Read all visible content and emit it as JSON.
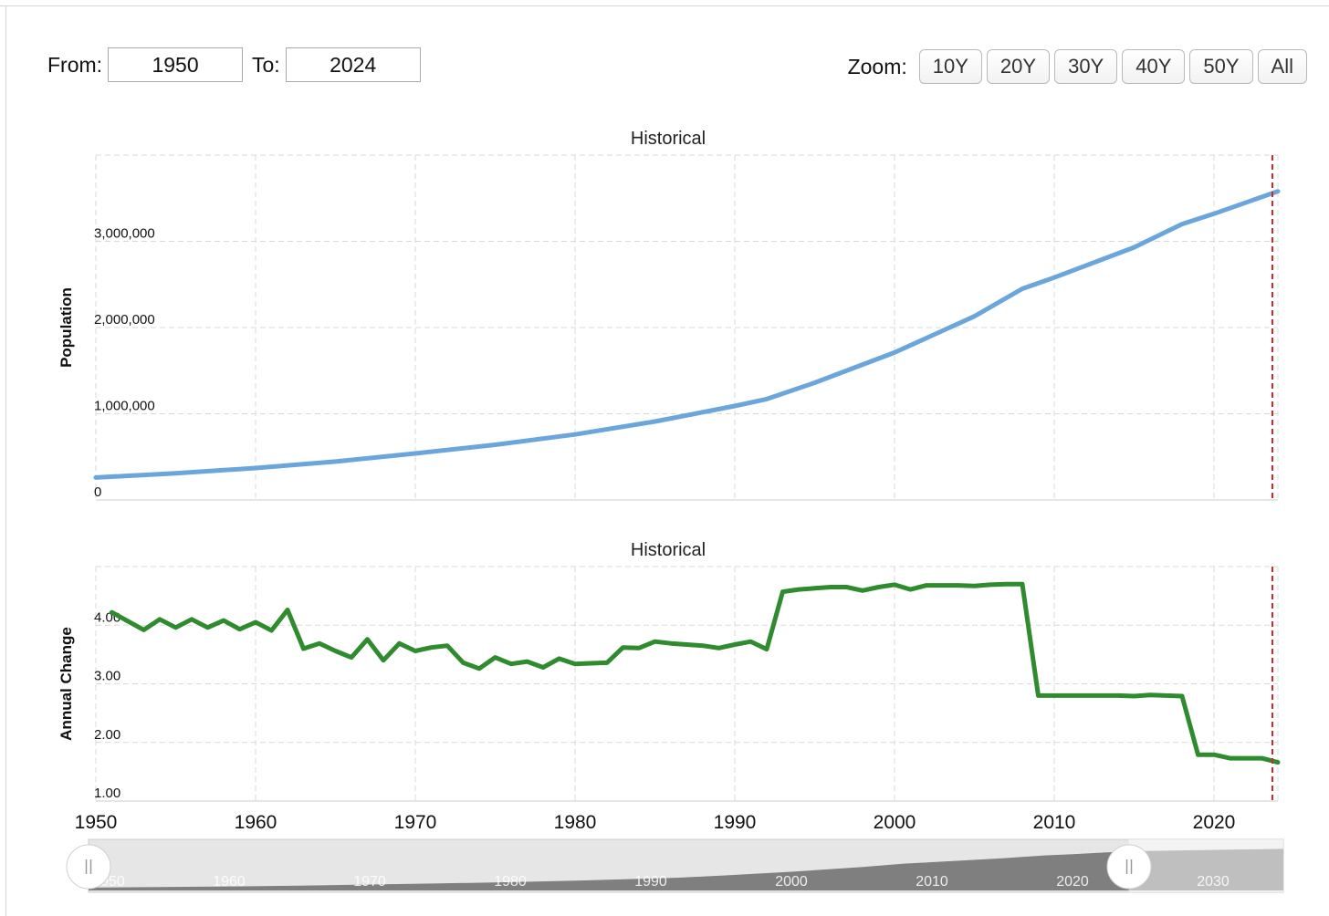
{
  "controls": {
    "from_label": "From:",
    "from_value": "1950",
    "to_label": "To:",
    "to_value": "2024",
    "zoom_label": "Zoom:",
    "zoom_buttons": [
      "10Y",
      "20Y",
      "30Y",
      "40Y",
      "50Y",
      "All"
    ]
  },
  "colors": {
    "population_line": "#6aa6dc",
    "annual_change_line": "#2e8b2e",
    "current_year_marker": "#d62728",
    "grid": "#d9d9d9"
  },
  "chart_data": [
    {
      "type": "line",
      "title": "Historical",
      "ylabel": "Population",
      "xlim": [
        1950,
        2024
      ],
      "ylim": [
        0,
        4000000
      ],
      "y_ticks": [
        0,
        1000000,
        2000000,
        3000000
      ],
      "y_tick_labels": [
        "0",
        "1,000,000",
        "2,000,000",
        "3,000,000"
      ],
      "grid": true,
      "current_year_marker": 2024,
      "series": [
        {
          "x": [
            1950,
            1955,
            1960,
            1965,
            1970,
            1975,
            1980,
            1985,
            1990,
            1992,
            1995,
            2000,
            2005,
            2008,
            2010,
            2015,
            2018,
            2020,
            2024
          ],
          "values": [
            260000,
            310000,
            370000,
            445000,
            540000,
            640000,
            760000,
            910000,
            1090000,
            1170000,
            1360000,
            1710000,
            2130000,
            2450000,
            2580000,
            2930000,
            3200000,
            3320000,
            3580000
          ]
        }
      ]
    },
    {
      "type": "line",
      "title": "Historical",
      "ylabel": "Annual Change",
      "xlabel_ticks": [
        "1950",
        "1960",
        "1970",
        "1980",
        "1990",
        "2000",
        "2010",
        "2020"
      ],
      "xlim": [
        1950,
        2024
      ],
      "ylim": [
        1.0,
        5.0
      ],
      "y_ticks": [
        1.0,
        2.0,
        3.0,
        4.0
      ],
      "y_tick_labels": [
        "1.00",
        "2.00",
        "3.00",
        "4.00"
      ],
      "grid": true,
      "current_year_marker": 2024,
      "series": [
        {
          "x": [
            1951,
            1952,
            1953,
            1954,
            1955,
            1956,
            1957,
            1958,
            1959,
            1960,
            1961,
            1962,
            1963,
            1964,
            1965,
            1966,
            1967,
            1968,
            1969,
            1970,
            1971,
            1972,
            1973,
            1974,
            1975,
            1976,
            1977,
            1978,
            1979,
            1980,
            1981,
            1982,
            1983,
            1984,
            1985,
            1986,
            1987,
            1988,
            1989,
            1990,
            1991,
            1992,
            1993,
            1994,
            1995,
            1996,
            1997,
            1998,
            1999,
            2000,
            2001,
            2002,
            2003,
            2004,
            2005,
            2006,
            2007,
            2008,
            2009,
            2010,
            2011,
            2012,
            2013,
            2014,
            2015,
            2016,
            2017,
            2018,
            2019,
            2020,
            2021,
            2022,
            2023,
            2024
          ],
          "values": [
            4.22,
            4.07,
            3.92,
            4.1,
            3.96,
            4.1,
            3.96,
            4.08,
            3.93,
            4.05,
            3.91,
            4.26,
            3.6,
            3.69,
            3.56,
            3.45,
            3.76,
            3.4,
            3.69,
            3.56,
            3.62,
            3.65,
            3.36,
            3.26,
            3.45,
            3.34,
            3.38,
            3.28,
            3.43,
            3.34,
            3.35,
            3.36,
            3.62,
            3.61,
            3.72,
            3.69,
            3.67,
            3.65,
            3.61,
            3.67,
            3.72,
            3.59,
            4.57,
            4.61,
            4.63,
            4.65,
            4.65,
            4.59,
            4.65,
            4.69,
            4.61,
            4.68,
            4.68,
            4.68,
            4.67,
            4.69,
            4.7,
            4.7,
            2.8,
            2.8,
            2.8,
            2.8,
            2.8,
            2.8,
            2.79,
            2.81,
            2.8,
            2.79,
            1.79,
            1.79,
            1.73,
            1.73,
            1.73,
            1.66
          ]
        }
      ]
    }
  ],
  "navigator": {
    "tick_labels": [
      "1950",
      "1960",
      "1970",
      "1980",
      "1990",
      "2000",
      "2010",
      "2020",
      "2030"
    ],
    "range": [
      1950,
      2024
    ],
    "axis_range": [
      1950,
      2035
    ]
  }
}
